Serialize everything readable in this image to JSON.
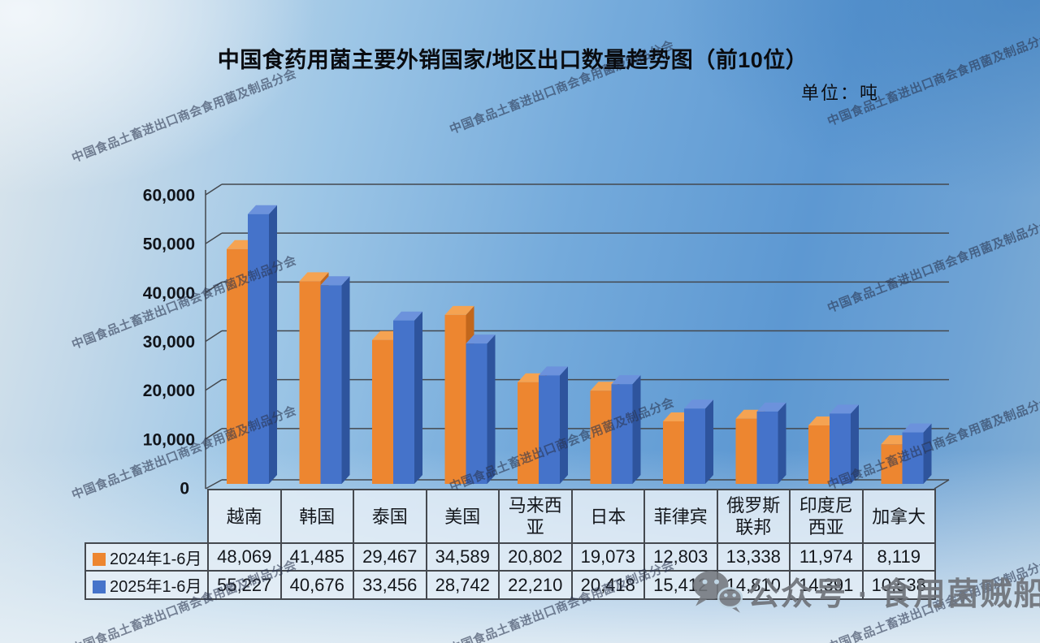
{
  "title": "中国食药用菌主要外销国家/地区出口数量趋势图（前10位）",
  "unit_label": "单位：吨",
  "watermark_text": "中国食品土畜进出口商会食用菌及制品分会",
  "wechat_label": "公众号 · 食用菌贼船",
  "colors": {
    "grid": "#44484e",
    "axis": "#44484e",
    "title_text": "#0a0c10",
    "table_border": "#45494f",
    "table_bg": "rgba(230,239,247,0.82)",
    "watermark": "rgba(42,52,78,0.58)",
    "wechat_gray": "#6f737a",
    "bg_sky_top": "#5d98d2",
    "bg_sky_light": "#dce6ec"
  },
  "chart_data": {
    "type": "bar",
    "style": "3d-clustered",
    "title": "中国食药用菌主要外销国家/地区出口数量趋势图（前10位）",
    "unit": "吨",
    "xlabel": "",
    "ylabel": "",
    "ylim": [
      0,
      60000
    ],
    "ytick_step": 10000,
    "grid": true,
    "legend_position": "table-left",
    "categories": [
      "越南",
      "韩国",
      "泰国",
      "美国",
      "马来西亚",
      "日本",
      "菲律宾",
      "俄罗斯联邦",
      "印度尼西亚",
      "加拿大"
    ],
    "series": [
      {
        "name": "2024年1-6月",
        "color_front": "#ED8630",
        "color_top": "#F5A352",
        "color_side": "#C2671C",
        "values": [
          48069,
          41485,
          29467,
          34589,
          20802,
          19073,
          12803,
          13338,
          11974,
          8119
        ]
      },
      {
        "name": "2025年1-6月",
        "color_front": "#4573CA",
        "color_top": "#6C92DC",
        "color_side": "#2E549D",
        "values": [
          55227,
          40676,
          33456,
          28742,
          22210,
          20418,
          15412,
          14810,
          14391,
          10538
        ]
      }
    ]
  }
}
